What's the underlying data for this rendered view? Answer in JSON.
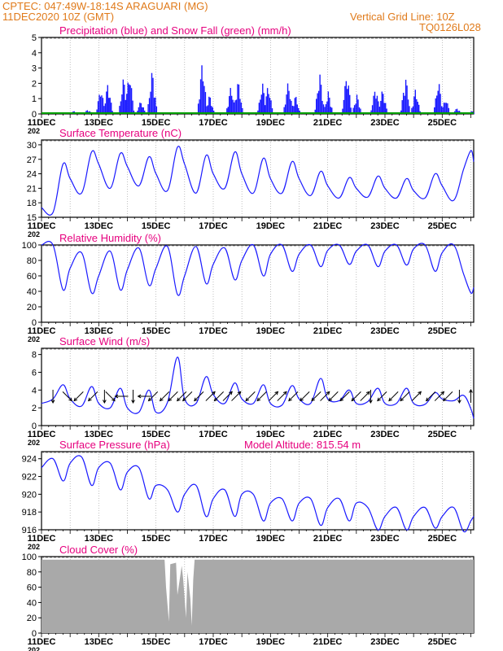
{
  "header": {
    "station_line": "CPTEC:   047:49W-18:14S  ARAGUARI (MG)",
    "run_line": "11DEC2020 10Z (GMT)",
    "grid_note": "Vertical Grid Line: 10Z",
    "code": "TQ0126L028"
  },
  "colors": {
    "header": "#e07a1a",
    "title": "#e6007e",
    "series_blue": "#1a1aff",
    "snow_green": "#00a000",
    "cloud_gray": "#a9a9a9",
    "arrow": "#000000"
  },
  "x_axis": {
    "tick_labels": [
      "11DEC",
      "13DEC",
      "15DEC",
      "17DEC",
      "19DEC",
      "21DEC",
      "23DEC",
      "25DEC"
    ],
    "year_stub": "202",
    "start_day": 11,
    "end_day": 26.1
  },
  "panels": {
    "precip": {
      "title": "Precipitation (blue) and Snow Fall (green) (mm/h)"
    },
    "temp": {
      "title": "Surface Temperature (nC)"
    },
    "rh": {
      "title": "Relative Humidity (%)"
    },
    "wind": {
      "title": "Surface Wind (m/s)"
    },
    "pres": {
      "title": "Surface Pressure (hPa)",
      "altitude": "Model Altitude: 815.54 m"
    },
    "cloud": {
      "title": "Cloud Cover (%)"
    }
  },
  "chart_data": [
    {
      "type": "bar",
      "id": "precip",
      "title": "Precipitation (blue) and Snow Fall (green) (mm/h)",
      "ylim": [
        0,
        5
      ],
      "yticks": [
        0,
        1,
        2,
        3,
        4,
        5
      ],
      "series": [
        {
          "name": "Precipitation",
          "peaks": [
            {
              "day": 11.2,
              "value": 0.1
            },
            {
              "day": 12.1,
              "value": 0.2
            },
            {
              "day": 12.6,
              "value": 0.3
            },
            {
              "day": 13.05,
              "value": 1.8
            },
            {
              "day": 13.3,
              "value": 2.1
            },
            {
              "day": 13.85,
              "value": 2.5
            },
            {
              "day": 14.05,
              "value": 2.9
            },
            {
              "day": 14.45,
              "value": 0.9
            },
            {
              "day": 14.85,
              "value": 3.0
            },
            {
              "day": 16.6,
              "value": 3.6
            },
            {
              "day": 16.85,
              "value": 1.3
            },
            {
              "day": 17.6,
              "value": 1.9
            },
            {
              "day": 17.85,
              "value": 2.3
            },
            {
              "day": 18.7,
              "value": 2.1
            },
            {
              "day": 18.9,
              "value": 2.0
            },
            {
              "day": 19.6,
              "value": 2.2
            },
            {
              "day": 19.85,
              "value": 1.3
            },
            {
              "day": 20.7,
              "value": 2.8
            },
            {
              "day": 21.0,
              "value": 1.5
            },
            {
              "day": 21.65,
              "value": 2.9
            },
            {
              "day": 22.0,
              "value": 1.3
            },
            {
              "day": 22.65,
              "value": 1.9
            },
            {
              "day": 22.9,
              "value": 1.7
            },
            {
              "day": 23.7,
              "value": 2.6
            },
            {
              "day": 24.05,
              "value": 1.7
            },
            {
              "day": 24.85,
              "value": 2.3
            },
            {
              "day": 25.1,
              "value": 1.1
            },
            {
              "day": 25.5,
              "value": 0.4
            },
            {
              "day": 26.0,
              "value": 0.2
            }
          ]
        },
        {
          "name": "Snow Fall",
          "values": [
            0,
            0,
            0,
            0,
            0,
            0,
            0,
            0,
            0,
            0,
            0,
            0,
            0,
            0,
            0,
            0
          ]
        }
      ]
    },
    {
      "type": "line",
      "id": "temp",
      "title": "Surface Temperature (nC)",
      "ylim": [
        15,
        31
      ],
      "yticks": [
        15,
        18,
        21,
        24,
        27,
        30
      ],
      "x": [
        11.0,
        11.4,
        11.75,
        12.0,
        12.4,
        12.75,
        13.0,
        13.4,
        13.75,
        14.0,
        14.4,
        14.75,
        15.0,
        15.4,
        15.75,
        16.0,
        16.4,
        16.75,
        17.0,
        17.4,
        17.75,
        18.0,
        18.4,
        18.75,
        19.0,
        19.4,
        19.75,
        20.0,
        20.4,
        20.75,
        21.0,
        21.4,
        21.75,
        22.0,
        22.4,
        22.75,
        23.0,
        23.4,
        23.75,
        24.0,
        24.4,
        24.75,
        25.0,
        25.4,
        25.75,
        26.0,
        26.1
      ],
      "y": [
        17.0,
        16.0,
        26.0,
        23.0,
        20.0,
        28.5,
        26.0,
        21.0,
        28.2,
        25.5,
        21.5,
        27.5,
        24.0,
        20.5,
        29.5,
        26.0,
        20.0,
        27.8,
        24.0,
        21.0,
        28.5,
        24.0,
        20.0,
        27.2,
        23.0,
        20.0,
        26.5,
        23.0,
        19.5,
        24.5,
        21.5,
        19.0,
        23.2,
        21.0,
        19.2,
        23.5,
        21.0,
        19.0,
        23.0,
        20.5,
        19.0,
        24.0,
        21.5,
        18.5,
        25.0,
        28.8,
        26.5
      ]
    },
    {
      "type": "line",
      "id": "rh",
      "title": "Relative Humidity (%)",
      "ylim": [
        0,
        100
      ],
      "yticks": [
        0,
        20,
        40,
        60,
        80,
        100
      ],
      "x": [
        11.0,
        11.4,
        11.75,
        12.0,
        12.4,
        12.75,
        13.0,
        13.4,
        13.75,
        14.0,
        14.4,
        14.75,
        15.0,
        15.4,
        15.75,
        16.0,
        16.4,
        16.75,
        17.0,
        17.4,
        17.75,
        18.0,
        18.4,
        18.75,
        19.0,
        19.4,
        19.75,
        20.0,
        20.4,
        20.75,
        21.0,
        21.4,
        21.75,
        22.0,
        22.4,
        22.75,
        23.0,
        23.4,
        23.75,
        24.0,
        24.4,
        24.75,
        25.0,
        25.4,
        25.75,
        26.0,
        26.1
      ],
      "y": [
        100,
        100,
        42,
        70,
        90,
        38,
        60,
        92,
        42,
        68,
        96,
        48,
        70,
        98,
        36,
        60,
        98,
        50,
        75,
        96,
        55,
        80,
        100,
        60,
        88,
        100,
        66,
        88,
        100,
        72,
        93,
        100,
        75,
        92,
        100,
        72,
        92,
        100,
        74,
        95,
        100,
        66,
        90,
        100,
        62,
        38,
        45
      ]
    },
    {
      "type": "line",
      "id": "wind",
      "title": "Surface Wind (m/s)",
      "ylim": [
        0,
        8.7
      ],
      "yticks": [
        0,
        2,
        4,
        6,
        8
      ],
      "x": [
        11.0,
        11.4,
        11.75,
        12.0,
        12.4,
        12.75,
        13.0,
        13.4,
        13.75,
        14.0,
        14.4,
        14.75,
        15.0,
        15.4,
        15.75,
        16.0,
        16.4,
        16.75,
        17.0,
        17.4,
        17.75,
        18.0,
        18.4,
        18.75,
        19.0,
        19.4,
        19.75,
        20.0,
        20.4,
        20.75,
        21.0,
        21.4,
        21.75,
        22.0,
        22.4,
        22.75,
        23.0,
        23.4,
        23.75,
        24.0,
        24.4,
        24.75,
        25.0,
        25.4,
        25.75,
        26.0,
        26.1
      ],
      "y": [
        2.5,
        3.0,
        4.6,
        3.0,
        2.2,
        4.4,
        2.5,
        2.0,
        4.2,
        2.0,
        1.5,
        4.0,
        1.5,
        2.6,
        7.7,
        3.0,
        2.5,
        5.5,
        3.5,
        2.5,
        4.8,
        3.0,
        2.5,
        4.6,
        2.5,
        2.3,
        4.5,
        3.0,
        2.5,
        5.3,
        3.0,
        2.8,
        4.0,
        2.5,
        2.7,
        4.2,
        2.5,
        2.5,
        4.2,
        2.5,
        2.4,
        3.7,
        3.0,
        2.8,
        3.4,
        1.9,
        0.8
      ],
      "wind_direction_arrows": [
        {
          "day": 11.4,
          "dir": "S"
        },
        {
          "day": 11.9,
          "dir": "SE"
        },
        {
          "day": 12.3,
          "dir": "SW"
        },
        {
          "day": 12.8,
          "dir": "SW"
        },
        {
          "day": 13.2,
          "dir": "S"
        },
        {
          "day": 13.4,
          "dir": "SE"
        },
        {
          "day": 13.8,
          "dir": "W"
        },
        {
          "day": 14.2,
          "dir": "S"
        },
        {
          "day": 14.6,
          "dir": "W"
        },
        {
          "day": 14.9,
          "dir": "SW"
        },
        {
          "day": 15.3,
          "dir": "SW"
        },
        {
          "day": 15.6,
          "dir": "SW"
        },
        {
          "day": 15.9,
          "dir": "SW"
        },
        {
          "day": 16.1,
          "dir": "SW"
        },
        {
          "day": 16.5,
          "dir": "SW"
        },
        {
          "day": 16.9,
          "dir": "NE"
        },
        {
          "day": 17.2,
          "dir": "SW"
        },
        {
          "day": 17.5,
          "dir": "NE"
        },
        {
          "day": 17.8,
          "dir": "NE"
        },
        {
          "day": 18.3,
          "dir": "SW"
        },
        {
          "day": 18.7,
          "dir": "SW"
        },
        {
          "day": 19.1,
          "dir": "NE"
        },
        {
          "day": 19.4,
          "dir": "NE"
        },
        {
          "day": 19.8,
          "dir": "SW"
        },
        {
          "day": 20.2,
          "dir": "SW"
        },
        {
          "day": 20.6,
          "dir": "SW"
        },
        {
          "day": 20.9,
          "dir": "NE"
        },
        {
          "day": 21.2,
          "dir": "SW"
        },
        {
          "day": 21.6,
          "dir": "SW"
        },
        {
          "day": 22.0,
          "dir": "SW"
        },
        {
          "day": 22.3,
          "dir": "NE"
        },
        {
          "day": 22.5,
          "dir": "S"
        },
        {
          "day": 22.9,
          "dir": "SW"
        },
        {
          "day": 23.3,
          "dir": "SW"
        },
        {
          "day": 23.7,
          "dir": "SW"
        },
        {
          "day": 24.1,
          "dir": "NE"
        },
        {
          "day": 24.6,
          "dir": "SW"
        },
        {
          "day": 24.9,
          "dir": "NE"
        },
        {
          "day": 25.2,
          "dir": "SW"
        },
        {
          "day": 25.6,
          "dir": "S"
        },
        {
          "day": 26.0,
          "dir": "N"
        }
      ]
    },
    {
      "type": "line",
      "id": "pres",
      "title": "Surface Pressure (hPa)",
      "annotation": "Model Altitude: 815.54 m",
      "ylim": [
        916,
        924.8
      ],
      "yticks": [
        916,
        918,
        920,
        922,
        924
      ],
      "x": [
        11.0,
        11.4,
        11.75,
        12.0,
        12.4,
        12.75,
        13.0,
        13.4,
        13.75,
        14.0,
        14.4,
        14.75,
        15.0,
        15.4,
        15.75,
        16.0,
        16.4,
        16.75,
        17.0,
        17.4,
        17.75,
        18.0,
        18.4,
        18.75,
        19.0,
        19.4,
        19.75,
        20.0,
        20.4,
        20.75,
        21.0,
        21.4,
        21.75,
        22.0,
        22.4,
        22.75,
        23.0,
        23.4,
        23.75,
        24.0,
        24.4,
        24.75,
        25.0,
        25.4,
        25.75,
        26.0,
        26.1
      ],
      "y": [
        923.0,
        924.0,
        921.5,
        923.5,
        924.2,
        921.0,
        923.0,
        923.5,
        920.5,
        922.5,
        923.0,
        919.5,
        921.0,
        920.5,
        918.0,
        920.0,
        921.0,
        917.5,
        919.5,
        920.5,
        917.5,
        920.0,
        920.0,
        917.0,
        919.0,
        919.5,
        917.0,
        919.0,
        919.5,
        916.5,
        918.5,
        919.5,
        917.0,
        919.0,
        918.5,
        916.0,
        917.5,
        918.5,
        916.0,
        917.5,
        918.5,
        916.2,
        917.5,
        918.5,
        915.8,
        917.0,
        917.5
      ]
    },
    {
      "type": "area",
      "id": "cloud",
      "title": "Cloud Cover (%)",
      "ylim": [
        0,
        100
      ],
      "yticks": [
        0,
        20,
        40,
        60,
        80,
        100
      ],
      "x": [
        11.0,
        15.3,
        15.35,
        15.45,
        15.5,
        15.7,
        15.75,
        15.9,
        15.95,
        16.05,
        16.1,
        16.2,
        16.25,
        16.3,
        16.35,
        26.1
      ],
      "y": [
        96,
        96,
        60,
        15,
        90,
        92,
        50,
        88,
        70,
        20,
        80,
        45,
        10,
        70,
        96,
        96
      ]
    }
  ]
}
